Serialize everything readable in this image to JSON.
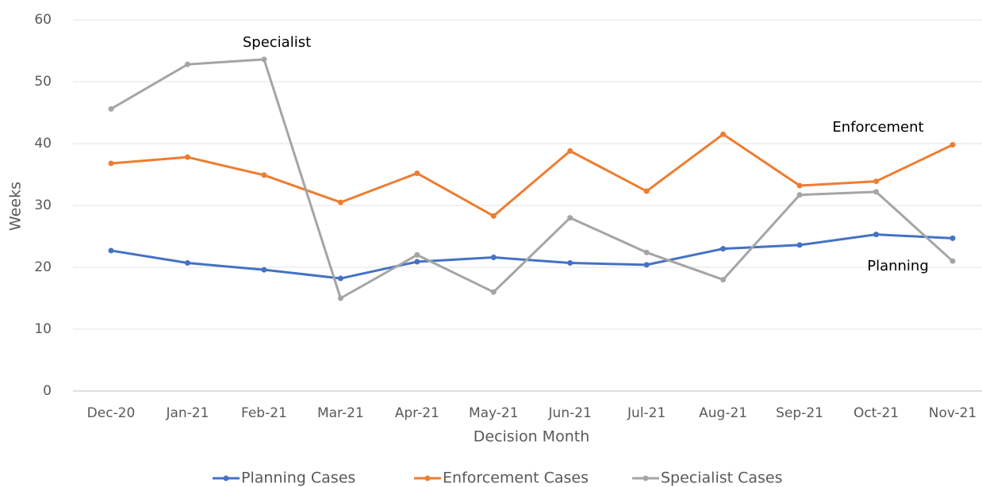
{
  "chart_data": {
    "type": "line",
    "y_label": "Weeks",
    "x_label": "Decision Month",
    "categories": [
      "Dec-20",
      "Jan-21",
      "Feb-21",
      "Mar-21",
      "Apr-21",
      "May-21",
      "Jun-21",
      "Jul-21",
      "Aug-21",
      "Sep-21",
      "Oct-21",
      "Nov-21"
    ],
    "series": [
      {
        "name": "Planning Cases",
        "color": "#4472c4",
        "values": [
          22.7,
          20.7,
          19.6,
          18.2,
          20.9,
          21.6,
          20.7,
          20.4,
          23.0,
          23.6,
          25.3,
          24.7
        ]
      },
      {
        "name": "Enforcement Cases",
        "color": "#ed7d31",
        "values": [
          36.8,
          37.8,
          34.9,
          30.5,
          35.2,
          28.3,
          38.8,
          32.3,
          41.5,
          33.2,
          33.9,
          39.8
        ]
      },
      {
        "name": "Specialist Cases",
        "color": "#a5a5a5",
        "values": [
          45.6,
          52.8,
          53.6,
          15.0,
          22.0,
          16.0,
          28.0,
          22.4,
          18.0,
          31.7,
          32.2,
          21.0
        ]
      }
    ],
    "annotations": [
      "Specialist",
      "Enforcement",
      "Planning"
    ],
    "ylim": [
      0,
      60
    ],
    "yticks": [
      0,
      10,
      20,
      30,
      40,
      50,
      60
    ],
    "grid": true,
    "legend": "bottom"
  }
}
